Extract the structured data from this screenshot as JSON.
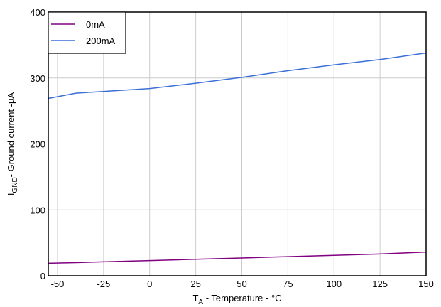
{
  "chart_data": {
    "type": "line",
    "title": "",
    "xlabel_main": "T",
    "xlabel_sub": "A",
    "xlabel_rest": " - Temperature - °C",
    "ylabel_main": "I",
    "ylabel_sub": "GND",
    "ylabel_rest": "- Ground current -µA",
    "xlim": [
      -55,
      150
    ],
    "ylim": [
      0,
      400
    ],
    "xticks": [
      -50,
      -25,
      0,
      25,
      50,
      75,
      100,
      125,
      150
    ],
    "yticks": [
      0,
      100,
      200,
      300,
      400
    ],
    "grid": true,
    "legend_position": "top-left",
    "series": [
      {
        "name": "0mA",
        "color": "#800080",
        "x": [
          -55,
          -40,
          0,
          25,
          50,
          75,
          100,
          125,
          150
        ],
        "y": [
          19,
          20,
          23,
          25,
          27,
          29,
          31,
          33,
          36
        ]
      },
      {
        "name": "200mA",
        "color": "#3a6fd8",
        "x": [
          -55,
          -40,
          0,
          25,
          50,
          75,
          100,
          125,
          150
        ],
        "y": [
          269,
          277,
          284,
          292,
          301,
          311,
          320,
          328,
          338
        ]
      }
    ]
  }
}
